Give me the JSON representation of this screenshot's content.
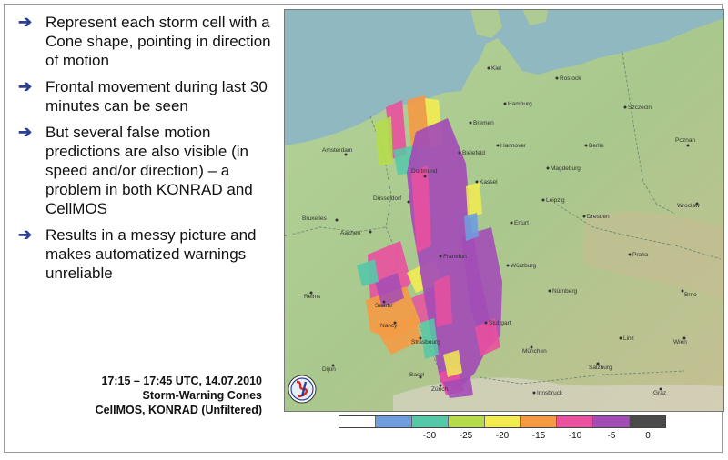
{
  "bullets": [
    "Represent each storm cell with a Cone shape, pointing in direction of motion",
    "Frontal movement during last 30 minutes can be seen",
    "But several false motion predictions are also visible (in speed and/or direction) – a problem in both KONRAD and CellMOS",
    "Results in a messy picture and makes automatized warnings unreliable"
  ],
  "arrow_glyph": "➔",
  "caption": {
    "line1": "17:15 – 17:45 UTC, 14.07.2010",
    "line2": "Storm-Warning Cones",
    "line3": "CellMOS, KONRAD (Unfiltered)"
  },
  "map": {
    "cities": [
      {
        "name": "Kiel"
      },
      {
        "name": "Rostock"
      },
      {
        "name": "Szczecin"
      },
      {
        "name": "Hamburg"
      },
      {
        "name": "Bremen"
      },
      {
        "name": "Amsterdam"
      },
      {
        "name": "Hannover"
      },
      {
        "name": "Berlin"
      },
      {
        "name": "Poznan"
      },
      {
        "name": "Bielefeld"
      },
      {
        "name": "Magdeburg"
      },
      {
        "name": "Dortmund"
      },
      {
        "name": "Kassel"
      },
      {
        "name": "Leipzig"
      },
      {
        "name": "Dresden"
      },
      {
        "name": "Wroclaw"
      },
      {
        "name": "Düsseldorf"
      },
      {
        "name": "Bruxelles"
      },
      {
        "name": "Aachen"
      },
      {
        "name": "Erfurt"
      },
      {
        "name": "Frankfurt"
      },
      {
        "name": "Würzburg"
      },
      {
        "name": "Praha"
      },
      {
        "name": "Reims"
      },
      {
        "name": "Saarbr"
      },
      {
        "name": "Nürnberg"
      },
      {
        "name": "Brno"
      },
      {
        "name": "Nancy"
      },
      {
        "name": "Stuttgart"
      },
      {
        "name": "Strasbourg"
      },
      {
        "name": "Linz"
      },
      {
        "name": "Wien"
      },
      {
        "name": "Dijon"
      },
      {
        "name": "München"
      },
      {
        "name": "Basel"
      },
      {
        "name": "Salzburg"
      },
      {
        "name": "Innsbruck"
      },
      {
        "name": "Zürich"
      },
      {
        "name": "Graz"
      }
    ]
  },
  "legend": {
    "colors": [
      "#ffffff",
      "#6f9ddd",
      "#55c8a8",
      "#b6dc4c",
      "#f2ec52",
      "#f49a45",
      "#e9509f",
      "#a34cb6",
      "#4a4a4a"
    ],
    "ticks": [
      {
        "label": "-30",
        "at": 2
      },
      {
        "label": "-25",
        "at": 3
      },
      {
        "label": "-20",
        "at": 4
      },
      {
        "label": "-15",
        "at": 5
      },
      {
        "label": "-10",
        "at": 6
      },
      {
        "label": "-5",
        "at": 7
      },
      {
        "label": "0",
        "at": 8
      }
    ]
  }
}
